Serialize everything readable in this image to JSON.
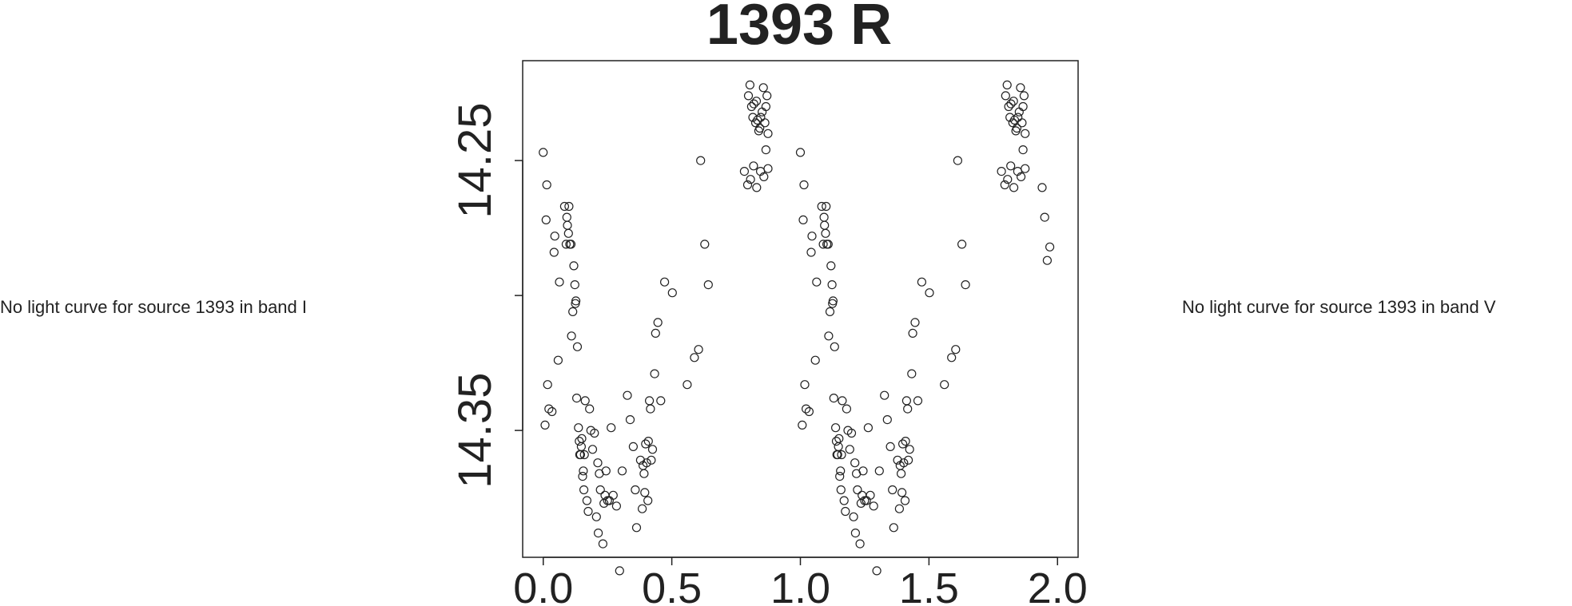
{
  "side_notes": {
    "left": "No light curve for source 1393 in band I",
    "right": "No light curve for source 1393 in band V"
  },
  "chart_data": {
    "type": "scatter",
    "title": "1393 R",
    "xlabel": "",
    "ylabel": "",
    "xlim": [
      -0.08,
      2.08
    ],
    "ylim": [
      14.213,
      14.397
    ],
    "y_inverted": true,
    "x_ticks": [
      "0.0",
      "0.5",
      "1.0",
      "1.5",
      "2.0"
    ],
    "y_ticks": [
      {
        "value": 14.25,
        "label": "14.25"
      },
      {
        "value": 14.3,
        "label": ""
      },
      {
        "value": 14.35,
        "label": "14.35"
      }
    ],
    "grid": false,
    "marker": "open-circle",
    "series": [
      {
        "points": [
          [
            0.0,
            14.247
          ],
          [
            0.007,
            14.348
          ],
          [
            0.011,
            14.272
          ],
          [
            0.014,
            14.259
          ],
          [
            0.017,
            14.333
          ],
          [
            0.022,
            14.342
          ],
          [
            0.034,
            14.343
          ],
          [
            0.042,
            14.284
          ],
          [
            0.045,
            14.278
          ],
          [
            0.058,
            14.324
          ],
          [
            0.063,
            14.295
          ],
          [
            0.083,
            14.267
          ],
          [
            0.089,
            14.281
          ],
          [
            0.092,
            14.271
          ],
          [
            0.094,
            14.274
          ],
          [
            0.098,
            14.277
          ],
          [
            0.1,
            14.267
          ],
          [
            0.103,
            14.281
          ],
          [
            0.108,
            14.281
          ],
          [
            0.11,
            14.315
          ],
          [
            0.115,
            14.306
          ],
          [
            0.119,
            14.289
          ],
          [
            0.123,
            14.296
          ],
          [
            0.125,
            14.303
          ],
          [
            0.127,
            14.302
          ],
          [
            0.13,
            14.338
          ],
          [
            0.133,
            14.319
          ],
          [
            0.137,
            14.349
          ],
          [
            0.14,
            14.354
          ],
          [
            0.142,
            14.359
          ],
          [
            0.145,
            14.359
          ],
          [
            0.148,
            14.356
          ],
          [
            0.15,
            14.353
          ],
          [
            0.153,
            14.367
          ],
          [
            0.156,
            14.365
          ],
          [
            0.158,
            14.372
          ],
          [
            0.16,
            14.359
          ],
          [
            0.163,
            14.339
          ],
          [
            0.17,
            14.376
          ],
          [
            0.175,
            14.38
          ],
          [
            0.18,
            14.342
          ],
          [
            0.185,
            14.35
          ],
          [
            0.192,
            14.357
          ],
          [
            0.199,
            14.351
          ],
          [
            0.207,
            14.382
          ],
          [
            0.212,
            14.362
          ],
          [
            0.214,
            14.388
          ],
          [
            0.218,
            14.366
          ],
          [
            0.222,
            14.372
          ],
          [
            0.232,
            14.392
          ],
          [
            0.236,
            14.377
          ],
          [
            0.24,
            14.374
          ],
          [
            0.244,
            14.365
          ],
          [
            0.25,
            14.376
          ],
          [
            0.257,
            14.376
          ],
          [
            0.264,
            14.349
          ],
          [
            0.272,
            14.374
          ],
          [
            0.285,
            14.378
          ],
          [
            0.297,
            14.402
          ],
          [
            0.307,
            14.365
          ],
          [
            0.327,
            14.337
          ],
          [
            0.338,
            14.346
          ],
          [
            0.35,
            14.356
          ],
          [
            0.358,
            14.372
          ],
          [
            0.363,
            14.386
          ],
          [
            0.378,
            14.361
          ],
          [
            0.385,
            14.379
          ],
          [
            0.388,
            14.363
          ],
          [
            0.392,
            14.366
          ],
          [
            0.395,
            14.373
          ],
          [
            0.398,
            14.355
          ],
          [
            0.402,
            14.362
          ],
          [
            0.407,
            14.376
          ],
          [
            0.409,
            14.354
          ],
          [
            0.413,
            14.339
          ],
          [
            0.417,
            14.342
          ],
          [
            0.42,
            14.361
          ],
          [
            0.425,
            14.357
          ],
          [
            0.433,
            14.329
          ],
          [
            0.437,
            14.314
          ],
          [
            0.446,
            14.31
          ],
          [
            0.457,
            14.339
          ],
          [
            0.472,
            14.295
          ],
          [
            0.502,
            14.299
          ],
          [
            0.56,
            14.333
          ],
          [
            0.588,
            14.323
          ],
          [
            0.604,
            14.32
          ],
          [
            0.612,
            14.25
          ],
          [
            0.628,
            14.281
          ],
          [
            0.642,
            14.296
          ],
          [
            0.798,
            14.226
          ],
          [
            0.804,
            14.222
          ],
          [
            0.81,
            14.23
          ],
          [
            0.815,
            14.234
          ],
          [
            0.819,
            14.229
          ],
          [
            0.826,
            14.236
          ],
          [
            0.829,
            14.228
          ],
          [
            0.833,
            14.235
          ],
          [
            0.838,
            14.239
          ],
          [
            0.842,
            14.238
          ],
          [
            0.846,
            14.234
          ],
          [
            0.851,
            14.232
          ],
          [
            0.856,
            14.223
          ],
          [
            0.862,
            14.236
          ],
          [
            0.866,
            14.23
          ],
          [
            0.87,
            14.226
          ],
          [
            0.874,
            14.24
          ],
          [
            0.782,
            14.254
          ],
          [
            0.795,
            14.259
          ],
          [
            0.806,
            14.257
          ],
          [
            0.818,
            14.252
          ],
          [
            0.83,
            14.26
          ],
          [
            0.845,
            14.254
          ],
          [
            0.858,
            14.256
          ],
          [
            0.866,
            14.246
          ],
          [
            0.874,
            14.253
          ]
        ]
      },
      {
        "points": [
          [
            1.0,
            14.247
          ],
          [
            1.007,
            14.348
          ],
          [
            1.011,
            14.272
          ],
          [
            1.014,
            14.259
          ],
          [
            1.017,
            14.333
          ],
          [
            1.022,
            14.342
          ],
          [
            1.034,
            14.343
          ],
          [
            1.042,
            14.284
          ],
          [
            1.045,
            14.278
          ],
          [
            1.058,
            14.324
          ],
          [
            1.063,
            14.295
          ],
          [
            1.083,
            14.267
          ],
          [
            1.089,
            14.281
          ],
          [
            1.092,
            14.271
          ],
          [
            1.094,
            14.274
          ],
          [
            1.098,
            14.277
          ],
          [
            1.1,
            14.267
          ],
          [
            1.103,
            14.281
          ],
          [
            1.108,
            14.281
          ],
          [
            1.11,
            14.315
          ],
          [
            1.115,
            14.306
          ],
          [
            1.119,
            14.289
          ],
          [
            1.123,
            14.296
          ],
          [
            1.125,
            14.303
          ],
          [
            1.127,
            14.302
          ],
          [
            1.13,
            14.338
          ],
          [
            1.133,
            14.319
          ],
          [
            1.137,
            14.349
          ],
          [
            1.14,
            14.354
          ],
          [
            1.142,
            14.359
          ],
          [
            1.145,
            14.359
          ],
          [
            1.148,
            14.356
          ],
          [
            1.15,
            14.353
          ],
          [
            1.153,
            14.367
          ],
          [
            1.156,
            14.365
          ],
          [
            1.158,
            14.372
          ],
          [
            1.16,
            14.359
          ],
          [
            1.163,
            14.339
          ],
          [
            1.17,
            14.376
          ],
          [
            1.175,
            14.38
          ],
          [
            1.18,
            14.342
          ],
          [
            1.185,
            14.35
          ],
          [
            1.192,
            14.357
          ],
          [
            1.199,
            14.351
          ],
          [
            1.207,
            14.382
          ],
          [
            1.212,
            14.362
          ],
          [
            1.214,
            14.388
          ],
          [
            1.218,
            14.366
          ],
          [
            1.222,
            14.372
          ],
          [
            1.232,
            14.392
          ],
          [
            1.236,
            14.377
          ],
          [
            1.24,
            14.374
          ],
          [
            1.244,
            14.365
          ],
          [
            1.25,
            14.376
          ],
          [
            1.257,
            14.376
          ],
          [
            1.264,
            14.349
          ],
          [
            1.272,
            14.374
          ],
          [
            1.285,
            14.378
          ],
          [
            1.297,
            14.402
          ],
          [
            1.307,
            14.365
          ],
          [
            1.327,
            14.337
          ],
          [
            1.338,
            14.346
          ],
          [
            1.35,
            14.356
          ],
          [
            1.358,
            14.372
          ],
          [
            1.363,
            14.386
          ],
          [
            1.378,
            14.361
          ],
          [
            1.385,
            14.379
          ],
          [
            1.388,
            14.363
          ],
          [
            1.392,
            14.366
          ],
          [
            1.395,
            14.373
          ],
          [
            1.398,
            14.355
          ],
          [
            1.402,
            14.362
          ],
          [
            1.407,
            14.376
          ],
          [
            1.409,
            14.354
          ],
          [
            1.413,
            14.339
          ],
          [
            1.417,
            14.342
          ],
          [
            1.42,
            14.361
          ],
          [
            1.425,
            14.357
          ],
          [
            1.433,
            14.329
          ],
          [
            1.437,
            14.314
          ],
          [
            1.446,
            14.31
          ],
          [
            1.457,
            14.339
          ],
          [
            1.472,
            14.295
          ],
          [
            1.502,
            14.299
          ],
          [
            1.56,
            14.333
          ],
          [
            1.588,
            14.323
          ],
          [
            1.604,
            14.32
          ],
          [
            1.612,
            14.25
          ],
          [
            1.628,
            14.281
          ],
          [
            1.642,
            14.296
          ],
          [
            1.798,
            14.226
          ],
          [
            1.804,
            14.222
          ],
          [
            1.81,
            14.23
          ],
          [
            1.815,
            14.234
          ],
          [
            1.819,
            14.229
          ],
          [
            1.826,
            14.236
          ],
          [
            1.829,
            14.228
          ],
          [
            1.833,
            14.235
          ],
          [
            1.838,
            14.239
          ],
          [
            1.842,
            14.238
          ],
          [
            1.846,
            14.234
          ],
          [
            1.851,
            14.232
          ],
          [
            1.856,
            14.223
          ],
          [
            1.862,
            14.236
          ],
          [
            1.866,
            14.23
          ],
          [
            1.87,
            14.226
          ],
          [
            1.874,
            14.24
          ],
          [
            1.782,
            14.254
          ],
          [
            1.795,
            14.259
          ],
          [
            1.806,
            14.257
          ],
          [
            1.818,
            14.252
          ],
          [
            1.83,
            14.26
          ],
          [
            1.845,
            14.254
          ],
          [
            1.858,
            14.256
          ],
          [
            1.866,
            14.246
          ],
          [
            1.874,
            14.253
          ],
          [
            1.94,
            14.26
          ],
          [
            1.95,
            14.271
          ],
          [
            1.96,
            14.287
          ],
          [
            1.97,
            14.282
          ]
        ]
      }
    ]
  }
}
